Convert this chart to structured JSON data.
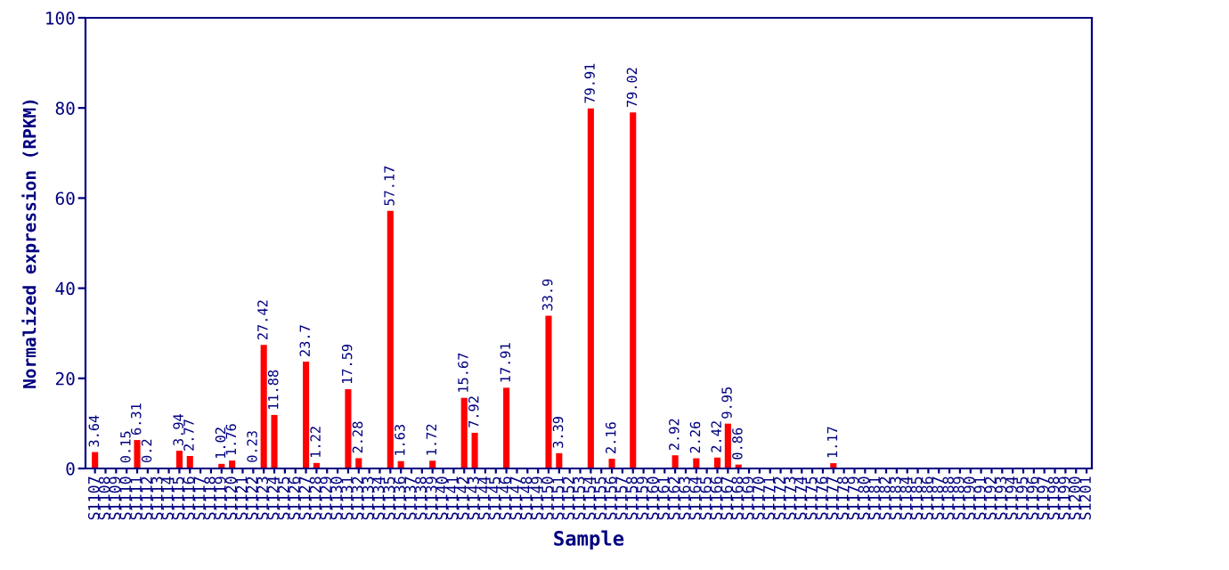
{
  "chart_data": {
    "type": "bar",
    "xlabel": "Sample",
    "ylabel": "Normalized expression (RPKM)",
    "categories": [
      "S1107",
      "S1108",
      "S1109",
      "S1110",
      "S1111",
      "S1112",
      "S1113",
      "S1114",
      "S1115",
      "S1116",
      "S1117",
      "S1118",
      "S1119",
      "S1120",
      "S1121",
      "S1122",
      "S1123",
      "S1124",
      "S1125",
      "S1126",
      "S1127",
      "S1128",
      "S1129",
      "S1130",
      "S1131",
      "S1132",
      "S1133",
      "S1134",
      "S1135",
      "S1136",
      "S1137",
      "S1138",
      "S1139",
      "S1140",
      "S1141",
      "S1142",
      "S1143",
      "S1144",
      "S1145",
      "S1146",
      "S1147",
      "S1148",
      "S1149",
      "S1150",
      "S1151",
      "S1152",
      "S1153",
      "S1154",
      "S1155",
      "S1156",
      "S1157",
      "S1158",
      "S1159",
      "S1160",
      "S1161",
      "S1162",
      "S1163",
      "S1164",
      "S1165",
      "S1166",
      "S1167",
      "S1168",
      "S1169",
      "S1170",
      "S1171",
      "S1172",
      "S1173",
      "S1174",
      "S1175",
      "S1176",
      "S1177",
      "S1178",
      "S1179",
      "S1180",
      "S1181",
      "S1182",
      "S1183",
      "S1184",
      "S1185",
      "S1186",
      "S1187",
      "S1188",
      "S1189",
      "S1190",
      "S1191",
      "S1192",
      "S1193",
      "S1194",
      "S1195",
      "S1196",
      "S1197",
      "S1198",
      "S1199",
      "S1200",
      "S1201"
    ],
    "values": [
      3.64,
      0,
      0,
      0.15,
      6.31,
      0.2,
      0,
      0,
      3.94,
      2.77,
      0,
      0,
      1.02,
      1.76,
      0,
      0.23,
      27.42,
      11.88,
      0,
      0,
      23.7,
      1.22,
      0,
      0,
      17.59,
      2.28,
      0,
      0,
      57.17,
      1.63,
      0,
      0,
      1.72,
      0,
      0,
      15.67,
      7.92,
      0,
      0,
      17.91,
      0,
      0,
      0,
      33.9,
      3.39,
      0,
      0,
      79.91,
      0,
      2.16,
      0,
      79.02,
      0,
      0,
      0,
      2.92,
      0,
      2.26,
      0,
      2.42,
      9.95,
      0.86,
      0,
      0,
      0,
      0,
      0,
      0,
      0,
      0,
      1.17,
      0,
      0,
      0,
      0,
      0,
      0,
      0,
      0,
      0,
      0,
      0,
      0,
      0,
      0,
      0,
      0,
      0,
      0,
      0,
      0,
      0,
      0,
      0,
      0
    ],
    "value_labels": [
      "3.64",
      null,
      null,
      "0.15",
      "6.31",
      "0.2",
      null,
      null,
      "3.94",
      "2.77",
      null,
      null,
      "1.02",
      "1.76",
      null,
      "0.23",
      "27.42",
      "11.88",
      null,
      null,
      "23.7",
      "1.22",
      null,
      null,
      "17.59",
      "2.28",
      null,
      null,
      "57.17",
      "1.63",
      null,
      null,
      "1.72",
      null,
      null,
      "15.67",
      "7.92",
      null,
      null,
      "17.91",
      null,
      null,
      null,
      "33.9",
      "3.39",
      null,
      null,
      "79.91",
      null,
      "2.16",
      null,
      "79.02",
      null,
      null,
      null,
      "2.92",
      null,
      "2.26",
      null,
      "2.42",
      "9.95",
      "0.86",
      null,
      null,
      null,
      null,
      null,
      null,
      null,
      null,
      "1.17",
      null,
      null,
      null,
      null,
      null,
      null,
      null,
      null,
      null,
      null,
      null,
      null,
      null,
      null,
      null,
      null,
      null,
      null,
      null,
      null,
      null,
      null,
      null,
      null
    ],
    "color": "#ff0000",
    "ylim": [
      0,
      100
    ],
    "yticks": [
      0,
      20,
      40,
      60,
      80,
      100
    ],
    "grid": false,
    "legend": false
  }
}
